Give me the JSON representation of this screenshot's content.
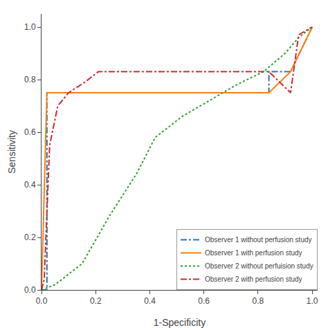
{
  "chart_data": {
    "type": "line",
    "xlabel": "1-Specificity",
    "ylabel": "Sensitivity",
    "xlim": [
      0.0,
      1.02
    ],
    "ylim": [
      0.0,
      1.05
    ],
    "xticks": [
      {
        "value": 0.0,
        "label": "0.0"
      },
      0.2,
      0.4,
      0.6,
      0.8,
      {
        "value": 1.0,
        "label": "1.0"
      }
    ],
    "yticks": [
      {
        "value": 0.0,
        "label": "0.0"
      },
      0.2,
      0.4,
      0.6,
      0.8,
      {
        "value": 1.0,
        "label": "1.0"
      }
    ],
    "grid": false,
    "legend": "lower right",
    "series": [
      {
        "name": "Observer 1 without perfusion study",
        "line_style": "dashdot",
        "x": [
          0.0,
          0.02,
          0.02,
          0.84,
          0.84,
          0.92,
          1.0
        ],
        "values": [
          0.0,
          0.0,
          0.75,
          0.75,
          0.83,
          0.83,
          1.0
        ]
      },
      {
        "name": "Observer 1 with perfusion study",
        "line_style": "solid",
        "x": [
          0.0,
          0.02,
          0.84,
          0.92,
          1.0
        ],
        "values": [
          0.0,
          0.75,
          0.75,
          0.83,
          1.0
        ]
      },
      {
        "name": "Observer 2 without perfuision study",
        "line_style": "dotted",
        "x": [
          0.0,
          0.05,
          0.15,
          0.25,
          0.35,
          0.42,
          0.52,
          0.62,
          0.72,
          0.82,
          0.9,
          0.95,
          1.0
        ],
        "values": [
          0.0,
          0.02,
          0.1,
          0.28,
          0.44,
          0.58,
          0.66,
          0.72,
          0.78,
          0.83,
          0.9,
          0.96,
          1.0
        ]
      },
      {
        "name": "Observer 2 with perfusion study",
        "line_style": "dashdot",
        "x": [
          0.0,
          0.01,
          0.03,
          0.06,
          0.1,
          0.16,
          0.21,
          0.84,
          0.92,
          0.95,
          1.0
        ],
        "values": [
          0.0,
          0.04,
          0.55,
          0.7,
          0.75,
          0.79,
          0.83,
          0.83,
          0.75,
          0.97,
          1.0
        ]
      }
    ]
  }
}
